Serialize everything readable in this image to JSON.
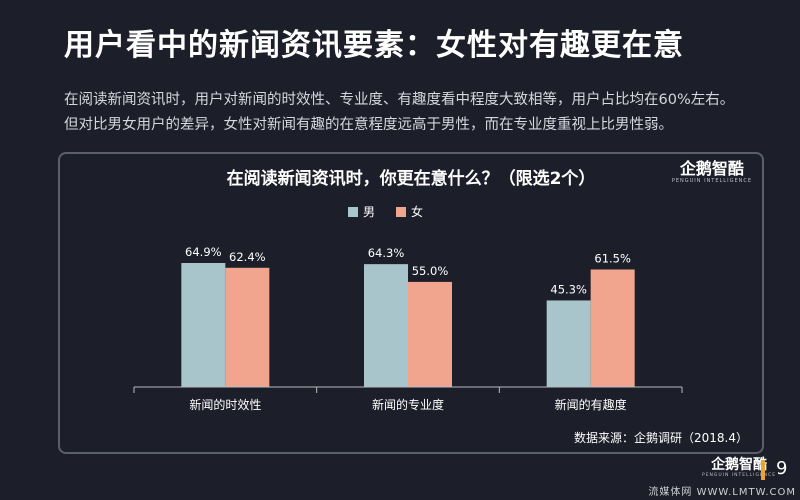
{
  "slide": {
    "title": "用户看中的新闻资讯要素：女性对有趣更在意",
    "description": "在阅读新闻资讯时，用户对新闻的时效性、专业度、有趣度看中程度大致相等，用户占比均在60%左右。但对比男女用户的差异，女性对新闻有趣的在意程度远高于男性，而在专业度重视上比男性弱。",
    "source": "数据来源：企鹅调研（2018.4）",
    "page_number": "9",
    "logo": {
      "main": "企鹅智酷",
      "sub": "PENGUIN INTELLIGENCE"
    },
    "watermark": "流媒体网 WWW.LMTW.COM"
  },
  "chart_data": {
    "type": "bar",
    "title": "在阅读新闻资讯时，你更在意什么？（限选2个）",
    "categories": [
      "新闻的时效性",
      "新闻的专业度",
      "新闻的有趣度"
    ],
    "series": [
      {
        "name": "男",
        "values": [
          64.9,
          64.3,
          45.3
        ],
        "labels": [
          "64.9%",
          "64.3%",
          "45.3%"
        ],
        "color": "#a8c5cb"
      },
      {
        "name": "女",
        "values": [
          62.4,
          55.0,
          61.5
        ],
        "labels": [
          "62.4%",
          "55.0%",
          "61.5%"
        ],
        "color": "#f2a58e"
      }
    ],
    "ylim": [
      0,
      70
    ],
    "xlabel": "",
    "ylabel": "",
    "grid": false,
    "legend": "top-center"
  },
  "colors": {
    "background": "#1c1e2a",
    "accent": "#e9a431"
  }
}
